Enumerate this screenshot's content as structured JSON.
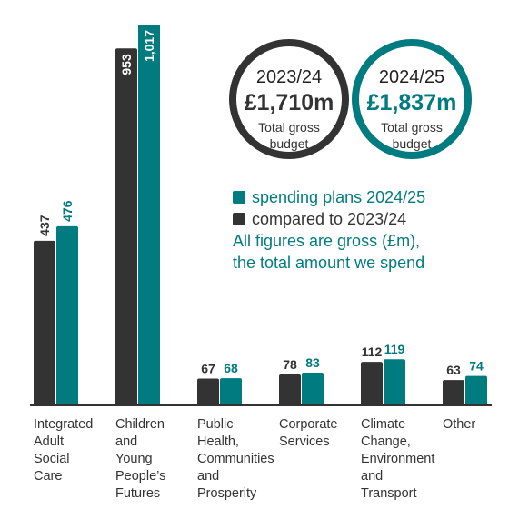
{
  "colors": {
    "dark": "#333333",
    "teal": "#007b7f",
    "axis": "#333333"
  },
  "circles": [
    {
      "year": "2023/24",
      "amount": "£1,710m",
      "caption": [
        "Total gross",
        "budget"
      ],
      "color": "#333333"
    },
    {
      "year": "2024/25",
      "amount": "£1,837m",
      "caption": [
        "Total gross",
        "budget"
      ],
      "color": "#007b7f"
    }
  ],
  "legend": {
    "teal_label": "spending plans 2024/25",
    "dark_label": "compared to 2023/24",
    "note_line1": "All figures are gross (£m),",
    "note_line2": "the total amount we spend"
  },
  "chart_data": {
    "type": "bar",
    "categories": [
      "Integrated Adult Social Care",
      "Children and Young People’s Futures",
      "Public Health, Communities and Prosperity",
      "Corporate Services",
      "Climate Change, Environment and Transport",
      "Other"
    ],
    "category_lines": [
      [
        "Integrated",
        "Adult",
        "Social",
        "Care"
      ],
      [
        "Children",
        "and",
        "Young",
        "People’s",
        "Futures"
      ],
      [
        "Public",
        "Health,",
        "Communities",
        "and",
        "Prosperity"
      ],
      [
        "Corporate",
        "Services"
      ],
      [
        "Climate",
        "Change,",
        "Environment",
        "and",
        "Transport"
      ],
      [
        "Other"
      ]
    ],
    "series": [
      {
        "name": "compared to 2023/24",
        "color": "#333333",
        "values": [
          437,
          953,
          67,
          78,
          112,
          63
        ],
        "labels": [
          "437",
          "953",
          "67",
          "78",
          "112",
          "63"
        ]
      },
      {
        "name": "spending plans 2024/25",
        "color": "#007b7f",
        "values": [
          476,
          1017,
          68,
          83,
          119,
          74
        ],
        "labels": [
          "476",
          "1,017",
          "68",
          "83",
          "119",
          "74"
        ]
      }
    ]
  }
}
